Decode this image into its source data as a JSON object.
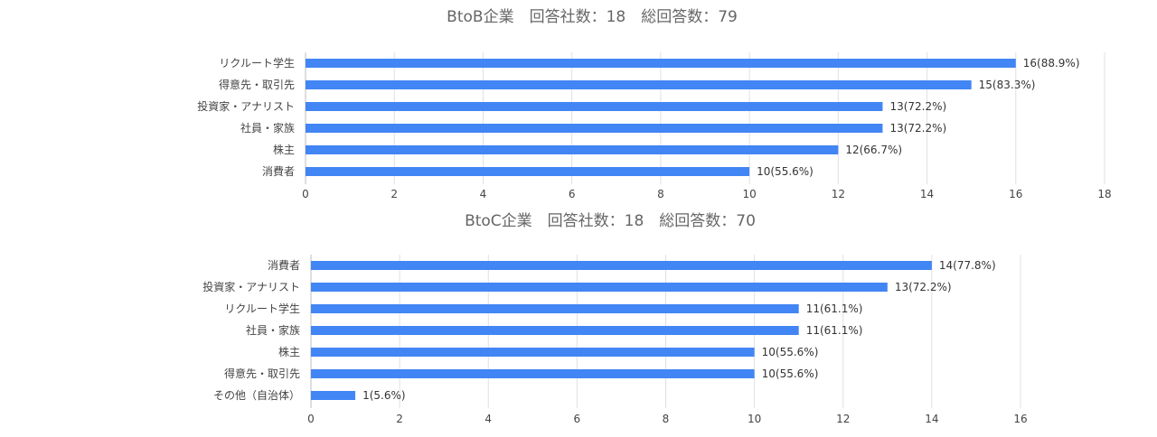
{
  "chart_data": [
    {
      "type": "bar",
      "orientation": "horizontal",
      "title": "BtoB企業　回答社数：18　総回答数：79",
      "categories": [
        "リクルート学生",
        "得意先・取引先",
        "投資家・アナリスト",
        "社員・家族",
        "株主",
        "消費者"
      ],
      "values": [
        16,
        15,
        13,
        13,
        12,
        10
      ],
      "data_labels": [
        "16(88.9%)",
        "15(83.3%)",
        "13(72.2%)",
        "13(72.2%)",
        "12(66.7%)",
        "10(55.6%)"
      ],
      "xlim": [
        0,
        18
      ],
      "xticks": [
        0,
        2,
        4,
        6,
        8,
        10,
        12,
        14,
        16,
        18
      ],
      "xlabel": "",
      "ylabel": "",
      "grid": true,
      "color": "#4285f4"
    },
    {
      "type": "bar",
      "orientation": "horizontal",
      "title": "BtoC企業　回答社数：18　総回答数：70",
      "categories": [
        "消費者",
        "投資家・アナリスト",
        "リクルート学生",
        "社員・家族",
        "株主",
        "得意先・取引先",
        "その他（自治体）"
      ],
      "values": [
        14,
        13,
        11,
        11,
        10,
        10,
        1
      ],
      "data_labels": [
        "14(77.8%)",
        "13(72.2%)",
        "11(61.1%)",
        "11(61.1%)",
        "10(55.6%)",
        "10(55.6%)",
        "1(5.6%)"
      ],
      "xlim": [
        0,
        16
      ],
      "xticks": [
        0,
        2,
        4,
        6,
        8,
        10,
        12,
        14,
        16
      ],
      "xlabel": "",
      "ylabel": "",
      "grid": true,
      "color": "#4285f4"
    }
  ]
}
